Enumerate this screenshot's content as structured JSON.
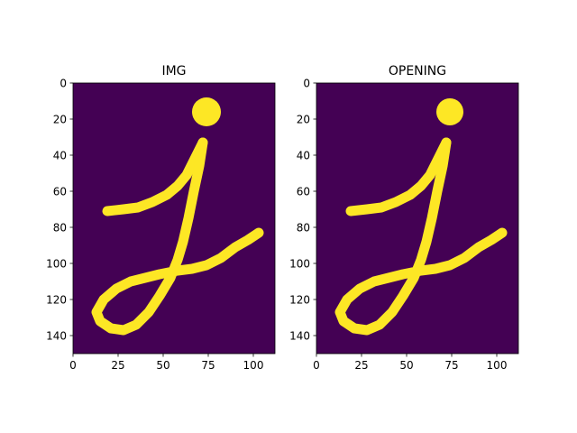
{
  "chart_data": [
    {
      "type": "heatmap",
      "title": "IMG",
      "colormap": "viridis",
      "background_color": "#440154",
      "foreground_color": "#fde725",
      "image_size": {
        "width": 112,
        "height": 150
      },
      "xlim": [
        0,
        112
      ],
      "ylim": [
        150,
        0
      ],
      "xticks": [
        0,
        25,
        50,
        75,
        100
      ],
      "yticks": [
        0,
        20,
        40,
        60,
        80,
        100,
        120,
        140
      ],
      "strokes": [
        [
          [
            19,
            71
          ],
          [
            28,
            70
          ],
          [
            36,
            69
          ],
          [
            44,
            66
          ],
          [
            52,
            62
          ],
          [
            58,
            57
          ],
          [
            63,
            51
          ],
          [
            66,
            45
          ],
          [
            69,
            39
          ],
          [
            72,
            33
          ]
        ],
        [
          [
            72,
            33
          ],
          [
            70,
            46
          ],
          [
            67,
            60
          ],
          [
            64,
            75
          ],
          [
            61,
            88
          ],
          [
            58,
            98
          ],
          [
            54,
            108
          ],
          [
            48,
            118
          ],
          [
            42,
            127
          ],
          [
            35,
            134
          ],
          [
            28,
            137
          ],
          [
            21,
            136
          ],
          [
            15,
            132
          ],
          [
            13,
            127
          ],
          [
            17,
            120
          ],
          [
            24,
            114
          ],
          [
            32,
            110
          ],
          [
            40,
            108
          ],
          [
            48,
            106
          ],
          [
            58,
            104
          ],
          [
            66,
            103
          ],
          [
            74,
            101
          ],
          [
            82,
            97
          ],
          [
            90,
            91
          ],
          [
            97,
            87
          ],
          [
            103,
            83
          ]
        ]
      ],
      "dots": [
        {
          "cx": 74,
          "cy": 16,
          "r": 8
        }
      ]
    },
    {
      "type": "heatmap",
      "title": "OPENING",
      "colormap": "viridis",
      "background_color": "#440154",
      "foreground_color": "#fde725",
      "image_size": {
        "width": 112,
        "height": 150
      },
      "xlim": [
        0,
        112
      ],
      "ylim": [
        150,
        0
      ],
      "xticks": [
        0,
        25,
        50,
        75,
        100
      ],
      "yticks": [
        0,
        20,
        40,
        60,
        80,
        100,
        120,
        140
      ],
      "strokes": [
        [
          [
            19,
            71
          ],
          [
            28,
            70
          ],
          [
            36,
            69
          ],
          [
            44,
            66
          ],
          [
            52,
            62
          ],
          [
            58,
            57
          ],
          [
            63,
            51
          ],
          [
            66,
            45
          ],
          [
            69,
            39
          ],
          [
            72,
            33
          ]
        ],
        [
          [
            72,
            33
          ],
          [
            70,
            46
          ],
          [
            67,
            60
          ],
          [
            64,
            75
          ],
          [
            61,
            88
          ],
          [
            58,
            98
          ],
          [
            54,
            108
          ],
          [
            48,
            118
          ],
          [
            42,
            127
          ],
          [
            35,
            134
          ],
          [
            28,
            137
          ],
          [
            21,
            136
          ],
          [
            15,
            132
          ],
          [
            13,
            127
          ],
          [
            17,
            120
          ],
          [
            24,
            114
          ],
          [
            32,
            110
          ],
          [
            40,
            108
          ],
          [
            48,
            106
          ],
          [
            58,
            104
          ],
          [
            66,
            103
          ],
          [
            74,
            101
          ],
          [
            82,
            97
          ],
          [
            90,
            91
          ],
          [
            97,
            87
          ],
          [
            103,
            83
          ]
        ]
      ],
      "dots": [
        {
          "cx": 74,
          "cy": 16,
          "r": 7.5
        }
      ]
    }
  ]
}
